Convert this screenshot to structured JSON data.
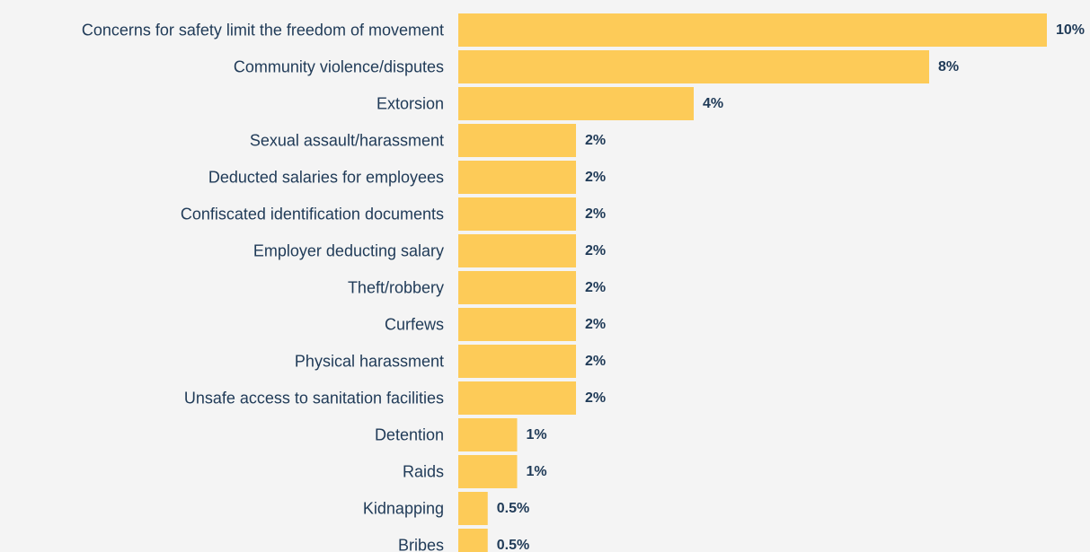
{
  "chart_data": {
    "type": "bar",
    "orientation": "horizontal",
    "categories": [
      "Concerns for safety limit the freedom of movement",
      "Community violence/disputes",
      "Extorsion",
      "Sexual assault/harassment",
      "Deducted salaries for employees",
      "Confiscated identification documents",
      "Employer deducting salary",
      "Theft/robbery",
      "Curfews",
      "Physical harassment",
      "Unsafe access to sanitation facilities",
      "Detention",
      "Raids",
      "Kidnapping",
      "Bribes"
    ],
    "values": [
      10,
      8,
      4,
      2,
      2,
      2,
      2,
      2,
      2,
      2,
      2,
      1,
      1,
      0.5,
      0.5
    ],
    "value_labels": [
      "10%",
      "8%",
      "4%",
      "2%",
      "2%",
      "2%",
      "2%",
      "2%",
      "2%",
      "2%",
      "2%",
      "1%",
      "1%",
      "0.5%",
      "0.5%"
    ],
    "xlim": [
      0,
      10
    ],
    "grid": false,
    "legend": "none"
  },
  "colors": {
    "background": "#f4f4f4",
    "bar": "#fdcb58",
    "category_text": "#1f3a57",
    "value_text": "#1f3a57"
  }
}
